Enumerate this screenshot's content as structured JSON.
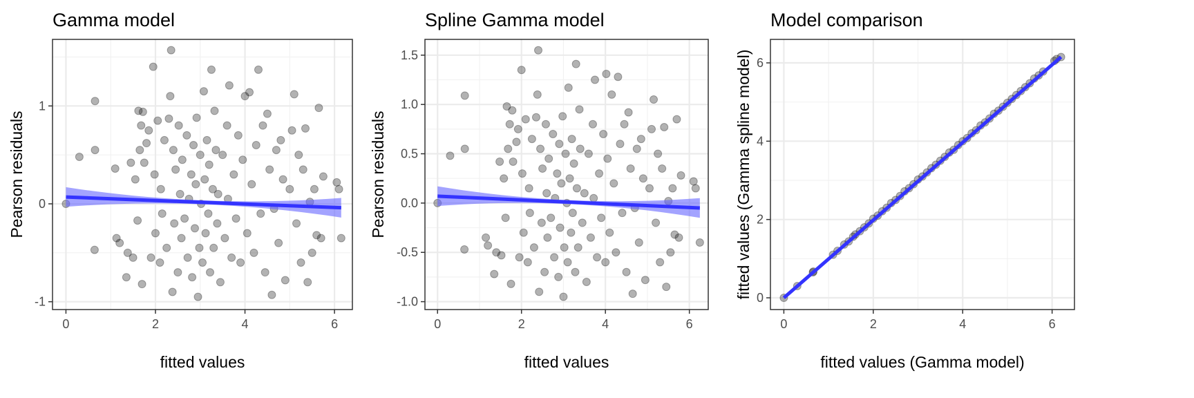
{
  "chart_data": [
    {
      "type": "scatter",
      "title": "Gamma model",
      "xlabel": "fitted values",
      "ylabel": "Pearson residuals",
      "xlim": [
        -0.3,
        6.4
      ],
      "ylim": [
        -1.08,
        1.68
      ],
      "xticks": [
        0,
        2,
        4,
        6
      ],
      "xtick_labels": [
        "0",
        "2",
        "4",
        "6"
      ],
      "yticks": [
        -1,
        0,
        1
      ],
      "ytick_labels": [
        "-1",
        "0",
        "1"
      ],
      "grid": true,
      "point_color": "#000000",
      "fit_color": "#3333ff",
      "band_color": "#6666ff",
      "fit_line": {
        "x": [
          0,
          6.15
        ],
        "y": [
          0.07,
          -0.04
        ],
        "se_ends": [
          0.1,
          0.1
        ],
        "se_mid": 0.02
      },
      "points": [
        [
          0,
          0
        ],
        [
          0.3,
          0.48
        ],
        [
          0.65,
          1.05
        ],
        [
          0.65,
          0.55
        ],
        [
          0.64,
          -0.47
        ],
        [
          1.1,
          0.36
        ],
        [
          1.13,
          -0.35
        ],
        [
          1.2,
          -0.4
        ],
        [
          1.35,
          -0.75
        ],
        [
          1.38,
          -0.5
        ],
        [
          1.45,
          0.42
        ],
        [
          1.5,
          -0.55
        ],
        [
          1.55,
          0.25
        ],
        [
          1.6,
          -0.17
        ],
        [
          1.62,
          0.95
        ],
        [
          1.65,
          0.55
        ],
        [
          1.68,
          0.8
        ],
        [
          1.7,
          -0.82
        ],
        [
          1.72,
          0.94
        ],
        [
          1.75,
          0.42
        ],
        [
          1.8,
          0.62
        ],
        [
          1.85,
          0.75
        ],
        [
          1.9,
          -0.55
        ],
        [
          1.95,
          1.4
        ],
        [
          1.98,
          0.3
        ],
        [
          2.0,
          -0.3
        ],
        [
          2.05,
          0.85
        ],
        [
          2.1,
          -0.6
        ],
        [
          2.12,
          0.15
        ],
        [
          2.15,
          -0.1
        ],
        [
          2.2,
          0.65
        ],
        [
          2.25,
          -0.45
        ],
        [
          2.3,
          0.87
        ],
        [
          2.33,
          1.1
        ],
        [
          2.35,
          1.57
        ],
        [
          2.38,
          -0.9
        ],
        [
          2.4,
          0.55
        ],
        [
          2.42,
          -0.2
        ],
        [
          2.45,
          0.35
        ],
        [
          2.5,
          -0.7
        ],
        [
          2.52,
          0.8
        ],
        [
          2.55,
          0.1
        ],
        [
          2.58,
          -0.35
        ],
        [
          2.6,
          0.45
        ],
        [
          2.65,
          -0.15
        ],
        [
          2.7,
          0.7
        ],
        [
          2.72,
          -0.55
        ],
        [
          2.75,
          0.05
        ],
        [
          2.8,
          0.3
        ],
        [
          2.82,
          -0.75
        ],
        [
          2.85,
          0.6
        ],
        [
          2.88,
          -0.25
        ],
        [
          2.9,
          0.2
        ],
        [
          2.92,
          0.88
        ],
        [
          2.95,
          -0.95
        ],
        [
          2.98,
          -0.45
        ],
        [
          3.0,
          0.5
        ],
        [
          3.02,
          0.0
        ],
        [
          3.05,
          -0.6
        ],
        [
          3.08,
          1.15
        ],
        [
          3.1,
          0.25
        ],
        [
          3.12,
          -0.3
        ],
        [
          3.15,
          0.65
        ],
        [
          3.18,
          -0.1
        ],
        [
          3.2,
          0.4
        ],
        [
          3.22,
          -0.7
        ],
        [
          3.25,
          1.37
        ],
        [
          3.28,
          0.15
        ],
        [
          3.3,
          -0.45
        ],
        [
          3.32,
          0.95
        ],
        [
          3.35,
          0.55
        ],
        [
          3.38,
          -0.2
        ],
        [
          3.4,
          0.1
        ],
        [
          3.45,
          -0.8
        ],
        [
          3.5,
          0.5
        ],
        [
          3.55,
          -0.35
        ],
        [
          3.6,
          0.8
        ],
        [
          3.62,
          0.05
        ],
        [
          3.65,
          1.21
        ],
        [
          3.7,
          -0.55
        ],
        [
          3.75,
          0.3
        ],
        [
          3.8,
          -0.15
        ],
        [
          3.85,
          0.7
        ],
        [
          3.9,
          -0.6
        ],
        [
          3.95,
          0.45
        ],
        [
          4.0,
          1.1
        ],
        [
          4.05,
          -0.3
        ],
        [
          4.1,
          1.14
        ],
        [
          4.15,
          0.2
        ],
        [
          4.2,
          -0.5
        ],
        [
          4.25,
          0.6
        ],
        [
          4.3,
          1.37
        ],
        [
          4.35,
          -0.1
        ],
        [
          4.4,
          0.8
        ],
        [
          4.45,
          -0.7
        ],
        [
          4.5,
          0.92
        ],
        [
          4.55,
          0.35
        ],
        [
          4.6,
          -0.93
        ],
        [
          4.65,
          -0.05
        ],
        [
          4.7,
          0.55
        ],
        [
          4.75,
          -0.4
        ],
        [
          4.8,
          0.65
        ],
        [
          4.85,
          0.25
        ],
        [
          4.9,
          -0.78
        ],
        [
          5.0,
          0.15
        ],
        [
          5.05,
          0.75
        ],
        [
          5.1,
          1.12
        ],
        [
          5.15,
          -0.2
        ],
        [
          5.2,
          0.5
        ],
        [
          5.25,
          -0.6
        ],
        [
          5.3,
          0.35
        ],
        [
          5.35,
          0.77
        ],
        [
          5.4,
          -0.8
        ],
        [
          5.45,
          0.02
        ],
        [
          5.5,
          -0.5
        ],
        [
          5.55,
          0.15
        ],
        [
          5.6,
          -0.32
        ],
        [
          5.65,
          0.98
        ],
        [
          5.7,
          -0.35
        ],
        [
          5.75,
          0.28
        ],
        [
          6.05,
          0.22
        ],
        [
          6.1,
          0.15
        ],
        [
          6.15,
          -0.35
        ]
      ]
    },
    {
      "type": "scatter",
      "title": "Spline Gamma model",
      "xlabel": "fitted values",
      "ylabel": "Pearson residuals",
      "xlim": [
        -0.3,
        6.45
      ],
      "ylim": [
        -1.08,
        1.66
      ],
      "xticks": [
        0,
        2,
        4,
        6
      ],
      "xtick_labels": [
        "0",
        "2",
        "4",
        "6"
      ],
      "yticks": [
        -1.0,
        -0.5,
        0.0,
        0.5,
        1.0,
        1.5
      ],
      "ytick_labels": [
        "-1.0",
        "-0.5",
        "0.0",
        "0.5",
        "1.0",
        "1.5"
      ],
      "grid": true,
      "point_color": "#000000",
      "fit_color": "#3333ff",
      "band_color": "#6666ff",
      "fit_line": {
        "x": [
          0,
          6.25
        ],
        "y": [
          0.07,
          -0.05
        ],
        "se_ends": [
          0.1,
          0.1
        ],
        "se_mid": 0.02
      },
      "points": [
        [
          0,
          0
        ],
        [
          0.3,
          0.48
        ],
        [
          0.65,
          1.09
        ],
        [
          0.65,
          0.55
        ],
        [
          0.64,
          -0.47
        ],
        [
          1.15,
          -0.35
        ],
        [
          1.2,
          -0.43
        ],
        [
          1.35,
          -0.72
        ],
        [
          1.4,
          -0.5
        ],
        [
          1.48,
          0.42
        ],
        [
          1.52,
          -0.53
        ],
        [
          1.58,
          0.25
        ],
        [
          1.62,
          -0.15
        ],
        [
          1.65,
          0.98
        ],
        [
          1.68,
          0.55
        ],
        [
          1.72,
          0.8
        ],
        [
          1.75,
          -0.82
        ],
        [
          1.78,
          0.94
        ],
        [
          1.8,
          0.42
        ],
        [
          1.88,
          0.62
        ],
        [
          1.92,
          0.75
        ],
        [
          1.95,
          -0.55
        ],
        [
          2.0,
          1.35
        ],
        [
          2.02,
          0.3
        ],
        [
          2.05,
          -0.3
        ],
        [
          2.1,
          0.85
        ],
        [
          2.15,
          -0.6
        ],
        [
          2.18,
          0.15
        ],
        [
          2.2,
          -0.1
        ],
        [
          2.25,
          0.65
        ],
        [
          2.3,
          -0.45
        ],
        [
          2.35,
          0.87
        ],
        [
          2.38,
          1.1
        ],
        [
          2.4,
          1.55
        ],
        [
          2.42,
          -0.9
        ],
        [
          2.45,
          0.55
        ],
        [
          2.48,
          -0.2
        ],
        [
          2.5,
          0.35
        ],
        [
          2.55,
          -0.7
        ],
        [
          2.58,
          0.8
        ],
        [
          2.6,
          0.1
        ],
        [
          2.62,
          -0.35
        ],
        [
          2.65,
          0.45
        ],
        [
          2.7,
          -0.15
        ],
        [
          2.75,
          0.7
        ],
        [
          2.78,
          -0.55
        ],
        [
          2.8,
          0.05
        ],
        [
          2.85,
          0.3
        ],
        [
          2.88,
          -0.75
        ],
        [
          2.9,
          0.6
        ],
        [
          2.92,
          -0.25
        ],
        [
          2.95,
          0.2
        ],
        [
          2.98,
          0.88
        ],
        [
          3.0,
          -0.95
        ],
        [
          3.02,
          -0.45
        ],
        [
          3.05,
          0.5
        ],
        [
          3.08,
          0.0
        ],
        [
          3.1,
          -0.6
        ],
        [
          3.12,
          1.17
        ],
        [
          3.15,
          0.25
        ],
        [
          3.18,
          -0.3
        ],
        [
          3.2,
          0.65
        ],
        [
          3.22,
          -0.1
        ],
        [
          3.25,
          0.4
        ],
        [
          3.28,
          -0.7
        ],
        [
          3.3,
          1.41
        ],
        [
          3.32,
          0.15
        ],
        [
          3.35,
          -0.45
        ],
        [
          3.38,
          0.95
        ],
        [
          3.4,
          0.55
        ],
        [
          3.45,
          -0.2
        ],
        [
          3.5,
          0.1
        ],
        [
          3.55,
          -0.8
        ],
        [
          3.6,
          0.5
        ],
        [
          3.65,
          -0.35
        ],
        [
          3.7,
          0.8
        ],
        [
          3.72,
          0.05
        ],
        [
          3.75,
          1.25
        ],
        [
          3.8,
          -0.55
        ],
        [
          3.85,
          0.3
        ],
        [
          3.9,
          -0.15
        ],
        [
          3.95,
          0.7
        ],
        [
          4.0,
          -0.6
        ],
        [
          4.02,
          1.31
        ],
        [
          4.05,
          0.45
        ],
        [
          4.1,
          -0.3
        ],
        [
          4.15,
          1.1
        ],
        [
          4.2,
          0.2
        ],
        [
          4.25,
          -0.5
        ],
        [
          4.3,
          1.28
        ],
        [
          4.35,
          0.6
        ],
        [
          4.4,
          -0.1
        ],
        [
          4.45,
          0.8
        ],
        [
          4.5,
          -0.7
        ],
        [
          4.55,
          0.92
        ],
        [
          4.6,
          0.35
        ],
        [
          4.65,
          -0.92
        ],
        [
          4.7,
          -0.05
        ],
        [
          4.75,
          0.55
        ],
        [
          4.8,
          -0.4
        ],
        [
          4.85,
          0.65
        ],
        [
          4.9,
          0.25
        ],
        [
          4.95,
          -0.78
        ],
        [
          5.05,
          0.15
        ],
        [
          5.1,
          0.75
        ],
        [
          5.15,
          1.05
        ],
        [
          5.2,
          -0.2
        ],
        [
          5.25,
          0.5
        ],
        [
          5.3,
          -0.6
        ],
        [
          5.35,
          0.35
        ],
        [
          5.4,
          0.77
        ],
        [
          5.45,
          -0.85
        ],
        [
          5.5,
          0.02
        ],
        [
          5.55,
          -0.5
        ],
        [
          5.6,
          0.15
        ],
        [
          5.65,
          -0.32
        ],
        [
          5.7,
          0.85
        ],
        [
          5.75,
          -0.35
        ],
        [
          5.8,
          0.28
        ],
        [
          6.1,
          0.22
        ],
        [
          6.15,
          0.15
        ],
        [
          6.25,
          -0.4
        ]
      ]
    },
    {
      "type": "scatter",
      "title": "Model comparison",
      "xlabel": "fitted values (Gamma model)",
      "ylabel": "fitted values (Gamma spline model)",
      "xlim": [
        -0.3,
        6.5
      ],
      "ylim": [
        -0.3,
        6.6
      ],
      "xticks": [
        0,
        2,
        4,
        6
      ],
      "xtick_labels": [
        "0",
        "2",
        "4",
        "6"
      ],
      "yticks": [
        0,
        2,
        4,
        6
      ],
      "ytick_labels": [
        "0",
        "2",
        "4",
        "6"
      ],
      "grid": true,
      "point_color": "#000000",
      "fit_color": "#3333ff",
      "fit_line": {
        "x": [
          0,
          6.2
        ],
        "y": [
          0,
          6.15
        ]
      },
      "points": [
        [
          0,
          0
        ],
        [
          0.3,
          0.3
        ],
        [
          0.65,
          0.65
        ],
        [
          0.66,
          0.67
        ],
        [
          1.1,
          1.1
        ],
        [
          1.2,
          1.2
        ],
        [
          1.35,
          1.36
        ],
        [
          1.45,
          1.44
        ],
        [
          1.55,
          1.56
        ],
        [
          1.6,
          1.62
        ],
        [
          1.7,
          1.7
        ],
        [
          1.8,
          1.8
        ],
        [
          1.9,
          1.9
        ],
        [
          2.0,
          2.02
        ],
        [
          2.1,
          2.1
        ],
        [
          2.2,
          2.21
        ],
        [
          2.3,
          2.3
        ],
        [
          2.4,
          2.42
        ],
        [
          2.5,
          2.5
        ],
        [
          2.6,
          2.6
        ],
        [
          2.7,
          2.72
        ],
        [
          2.8,
          2.8
        ],
        [
          2.9,
          2.9
        ],
        [
          3.0,
          3.02
        ],
        [
          3.1,
          3.1
        ],
        [
          3.2,
          3.2
        ],
        [
          3.3,
          3.31
        ],
        [
          3.4,
          3.4
        ],
        [
          3.5,
          3.5
        ],
        [
          3.6,
          3.6
        ],
        [
          3.7,
          3.71
        ],
        [
          3.8,
          3.78
        ],
        [
          3.9,
          3.9
        ],
        [
          4.0,
          4.0
        ],
        [
          4.1,
          4.08
        ],
        [
          4.2,
          4.2
        ],
        [
          4.3,
          4.28
        ],
        [
          4.4,
          4.4
        ],
        [
          4.5,
          4.48
        ],
        [
          4.6,
          4.58
        ],
        [
          4.7,
          4.7
        ],
        [
          4.8,
          4.78
        ],
        [
          4.9,
          4.88
        ],
        [
          5.0,
          4.98
        ],
        [
          5.1,
          5.08
        ],
        [
          5.2,
          5.18
        ],
        [
          5.3,
          5.28
        ],
        [
          5.4,
          5.38
        ],
        [
          5.5,
          5.48
        ],
        [
          5.6,
          5.6
        ],
        [
          5.7,
          5.68
        ],
        [
          5.8,
          5.78
        ],
        [
          6.05,
          6.05
        ],
        [
          6.1,
          6.1
        ],
        [
          6.2,
          6.15
        ]
      ]
    }
  ]
}
